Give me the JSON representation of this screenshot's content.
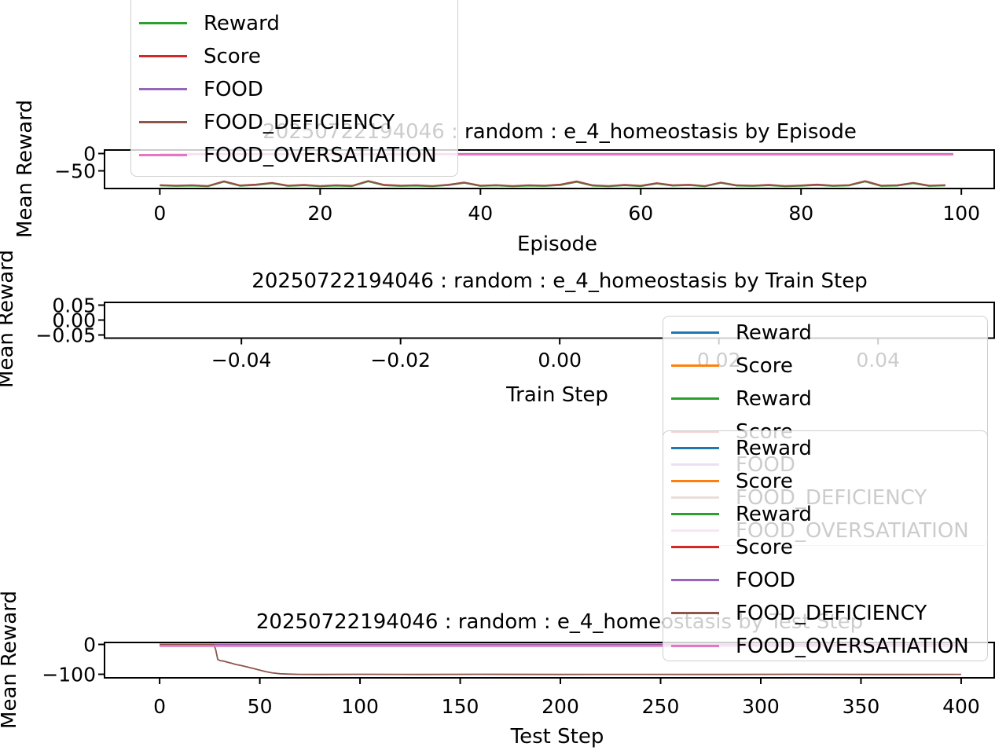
{
  "figure": {
    "background": "#ffffff",
    "text_color": "#000000",
    "legend_border_color": "#cfcfcf",
    "legend_bg_alpha": 0.8
  },
  "palette": {
    "blue": "#1f77b4",
    "orange": "#ff7f0e",
    "green": "#2ca02c",
    "red": "#d62728",
    "purple": "#9467bd",
    "brown": "#8c564b",
    "pink": "#e377c2"
  },
  "chart_data": [
    {
      "id": "episode",
      "type": "line",
      "title": "20250722194046 : random : e_4_homeostasis by Episode",
      "xlabel": "Episode",
      "ylabel": "Mean Reward",
      "xlim": [
        -6.9,
        104.1
      ],
      "ylim": [
        -101,
        10.2
      ],
      "grid": false,
      "xticks": [
        {
          "v": 0,
          "label": "0"
        },
        {
          "v": 20,
          "label": "20"
        },
        {
          "v": 40,
          "label": "40"
        },
        {
          "v": 60,
          "label": "60"
        },
        {
          "v": 80,
          "label": "80"
        },
        {
          "v": 100,
          "label": "100"
        }
      ],
      "yticks": [
        {
          "v": 0,
          "label": "0"
        },
        {
          "v": -50,
          "label": "−50"
        }
      ],
      "series": [
        {
          "name": "Reward",
          "color": "green",
          "x": [
            0,
            2,
            4,
            6,
            8,
            10,
            12,
            14,
            16,
            18,
            20,
            22,
            24,
            26,
            28,
            30,
            32,
            34,
            36,
            38,
            40,
            42,
            44,
            46,
            48,
            50,
            52,
            54,
            56,
            58,
            60,
            62,
            64,
            66,
            68,
            70,
            72,
            74,
            76,
            78,
            80,
            82,
            84,
            86,
            88,
            90,
            92,
            94,
            96,
            98
          ],
          "y": [
            -92.7,
            -94.2,
            -93.2,
            -95.2,
            -81.7,
            -93.7,
            -91.2,
            -86.2,
            -94.2,
            -92.2,
            -95.2,
            -93.2,
            -94.7,
            -80.7,
            -92.2,
            -94.2,
            -93.2,
            -95.2,
            -91.7,
            -85.2,
            -94.2,
            -92.7,
            -95.2,
            -93.2,
            -94.2,
            -91.2,
            -82.2,
            -93.2,
            -95.2,
            -92.2,
            -94.7,
            -87.2,
            -93.2,
            -91.7,
            -95.2,
            -85.2,
            -93.2,
            -94.2,
            -92.2,
            -95.2,
            -93.7,
            -91.2,
            -94.2,
            -92.7,
            -81.2,
            -94.2,
            -93.2,
            -86.2,
            -94.2,
            -92.7
          ]
        },
        {
          "name": "Score",
          "color": "red",
          "x": [
            0,
            2,
            4,
            6,
            8,
            10,
            12,
            14,
            16,
            18,
            20,
            22,
            24,
            26,
            28,
            30,
            32,
            34,
            36,
            38,
            40,
            42,
            44,
            46,
            48,
            50,
            52,
            54,
            56,
            58,
            60,
            62,
            64,
            66,
            68,
            70,
            72,
            74,
            76,
            78,
            80,
            82,
            84,
            86,
            88,
            90,
            92,
            94,
            96,
            98
          ],
          "y": [
            -90.7,
            -92.2,
            -91.2,
            -93.2,
            -79.7,
            -91.7,
            -89.2,
            -84.2,
            -92.2,
            -90.2,
            -93.2,
            -91.2,
            -92.7,
            -78.7,
            -90.2,
            -92.2,
            -91.2,
            -93.2,
            -89.7,
            -83.2,
            -92.2,
            -90.7,
            -93.2,
            -91.2,
            -92.2,
            -89.2,
            -80.2,
            -91.2,
            -93.2,
            -90.2,
            -92.7,
            -85.2,
            -91.2,
            -89.7,
            -93.2,
            -83.2,
            -91.2,
            -92.2,
            -90.2,
            -93.2,
            -91.7,
            -89.2,
            -92.2,
            -90.7,
            -79.2,
            -92.2,
            -91.2,
            -84.2,
            -92.2,
            -90.7
          ]
        },
        {
          "name": "FOOD",
          "color": "purple",
          "x": [
            0,
            99
          ],
          "y": [
            -0.8,
            -0.8
          ]
        },
        {
          "name": "FOOD_DEFICIENCY",
          "color": "brown",
          "x": [
            0,
            2,
            4,
            6,
            8,
            10,
            12,
            14,
            16,
            18,
            20,
            22,
            24,
            26,
            28,
            30,
            32,
            34,
            36,
            38,
            40,
            42,
            44,
            46,
            48,
            50,
            52,
            54,
            56,
            58,
            60,
            62,
            64,
            66,
            68,
            70,
            72,
            74,
            76,
            78,
            80,
            82,
            84,
            86,
            88,
            90,
            92,
            94,
            96,
            98
          ],
          "y": [
            -91.5,
            -93,
            -92,
            -94,
            -80.5,
            -92.5,
            -90,
            -85,
            -93,
            -91,
            -94,
            -92,
            -93.5,
            -79.5,
            -91,
            -93,
            -92,
            -94,
            -90.5,
            -84,
            -93,
            -91.5,
            -94,
            -92,
            -93,
            -90,
            -81,
            -92,
            -94,
            -91,
            -93.5,
            -86,
            -92,
            -90.5,
            -94,
            -84,
            -92,
            -93,
            -91,
            -94,
            -92.5,
            -90,
            -93,
            -91.5,
            -80,
            -93,
            -92,
            -85,
            -93,
            -91.5
          ]
        },
        {
          "name": "FOOD_OVERSATIATION",
          "color": "pink",
          "x": [
            0,
            99
          ],
          "y": [
            -2.8,
            -2.8
          ]
        }
      ]
    },
    {
      "id": "train_step",
      "type": "line",
      "title": "20250722194046 : random : e_4_homeostasis by Train Step",
      "xlabel": "Train Step",
      "ylabel": "Mean Reward",
      "xlim": [
        -0.0572,
        0.0546
      ],
      "ylim": [
        -0.0605,
        0.0592
      ],
      "grid": false,
      "xticks": [
        {
          "v": -0.04,
          "label": "−0.04"
        },
        {
          "v": -0.02,
          "label": "−0.02"
        },
        {
          "v": 0,
          "label": "0.00"
        },
        {
          "v": 0.02,
          "label": "0.02"
        },
        {
          "v": 0.04,
          "label": "0.04"
        }
      ],
      "yticks": [
        {
          "v": 0.05,
          "label": "0.05"
        },
        {
          "v": 0,
          "label": "0.00"
        },
        {
          "v": -0.05,
          "label": "−0.05"
        }
      ],
      "series": []
    },
    {
      "id": "test_step",
      "type": "line",
      "title": "20250722194046 : random : e_4_homeostasis by Test Step",
      "xlabel": "Test Step",
      "ylabel": "Mean Reward",
      "xlim": [
        -27.5,
        416.5
      ],
      "ylim": [
        -111.8,
        6.6
      ],
      "grid": false,
      "xticks": [
        {
          "v": 0,
          "label": "0"
        },
        {
          "v": 50,
          "label": "50"
        },
        {
          "v": 100,
          "label": "100"
        },
        {
          "v": 150,
          "label": "150"
        },
        {
          "v": 200,
          "label": "200"
        },
        {
          "v": 250,
          "label": "250"
        },
        {
          "v": 300,
          "label": "300"
        },
        {
          "v": 350,
          "label": "350"
        },
        {
          "v": 400,
          "label": "400"
        }
      ],
      "yticks": [
        {
          "v": 0,
          "label": "0"
        },
        {
          "v": -100,
          "label": "−100"
        }
      ],
      "series": [
        {
          "name": "Reward",
          "color": "blue",
          "x": [
            0,
            400
          ],
          "y": [
            0,
            0
          ]
        },
        {
          "name": "Score",
          "color": "orange",
          "x": [
            0,
            400
          ],
          "y": [
            -0.3,
            -0.3
          ]
        },
        {
          "name": "Reward",
          "color": "green",
          "x": [
            0,
            400
          ],
          "y": [
            -0.6,
            -0.6
          ]
        },
        {
          "name": "Score",
          "color": "red",
          "x": [
            0,
            400
          ],
          "y": [
            -0.9,
            -0.9
          ]
        },
        {
          "name": "FOOD",
          "color": "purple",
          "x": [
            0,
            400
          ],
          "y": [
            -1.2,
            -1.2
          ]
        },
        {
          "name": "FOOD_DEFICIENCY",
          "color": "brown",
          "x": [
            0,
            10,
            20,
            27,
            28,
            29,
            30,
            32,
            34,
            36,
            38,
            41,
            44,
            47,
            50,
            53,
            56,
            60,
            65,
            70,
            80,
            100,
            130,
            160,
            200,
            240,
            280,
            320,
            360,
            400
          ],
          "y": [
            -0.5,
            -0.5,
            -0.5,
            -0.5,
            -18,
            -50,
            -54,
            -56,
            -60,
            -63,
            -67,
            -71,
            -76,
            -81,
            -86,
            -91,
            -95,
            -98,
            -99.5,
            -100.2,
            -100.5,
            -100,
            -100.6,
            -100,
            -100.5,
            -100.1,
            -100.6,
            -100,
            -100.4,
            -100.2
          ]
        },
        {
          "name": "FOOD_OVERSATIATION",
          "color": "pink",
          "x": [
            0,
            400
          ],
          "y": [
            -5,
            -5
          ]
        }
      ]
    }
  ],
  "legends": [
    {
      "plot": "episode",
      "entries": [
        {
          "label": "Reward",
          "color": "green"
        },
        {
          "label": "Score",
          "color": "red"
        },
        {
          "label": "FOOD",
          "color": "purple"
        },
        {
          "label": "FOOD_DEFICIENCY",
          "color": "brown"
        },
        {
          "label": "FOOD_OVERSATIATION",
          "color": "pink"
        }
      ]
    },
    {
      "plot": "train_step",
      "entries": [
        {
          "label": "Reward",
          "color": "blue"
        },
        {
          "label": "Score",
          "color": "orange"
        },
        {
          "label": "Reward",
          "color": "green"
        },
        {
          "label": "Score",
          "color": "red"
        },
        {
          "label": "FOOD",
          "color": "purple"
        },
        {
          "label": "FOOD_DEFICIENCY",
          "color": "brown"
        },
        {
          "label": "FOOD_OVERSATIATION",
          "color": "pink"
        }
      ]
    },
    {
      "plot": "test_step",
      "entries": [
        {
          "label": "Reward",
          "color": "blue"
        },
        {
          "label": "Score",
          "color": "orange"
        },
        {
          "label": "Reward",
          "color": "green"
        },
        {
          "label": "Score",
          "color": "red"
        },
        {
          "label": "FOOD",
          "color": "purple"
        },
        {
          "label": "FOOD_DEFICIENCY",
          "color": "brown"
        },
        {
          "label": "FOOD_OVERSATIATION",
          "color": "pink"
        }
      ]
    }
  ]
}
